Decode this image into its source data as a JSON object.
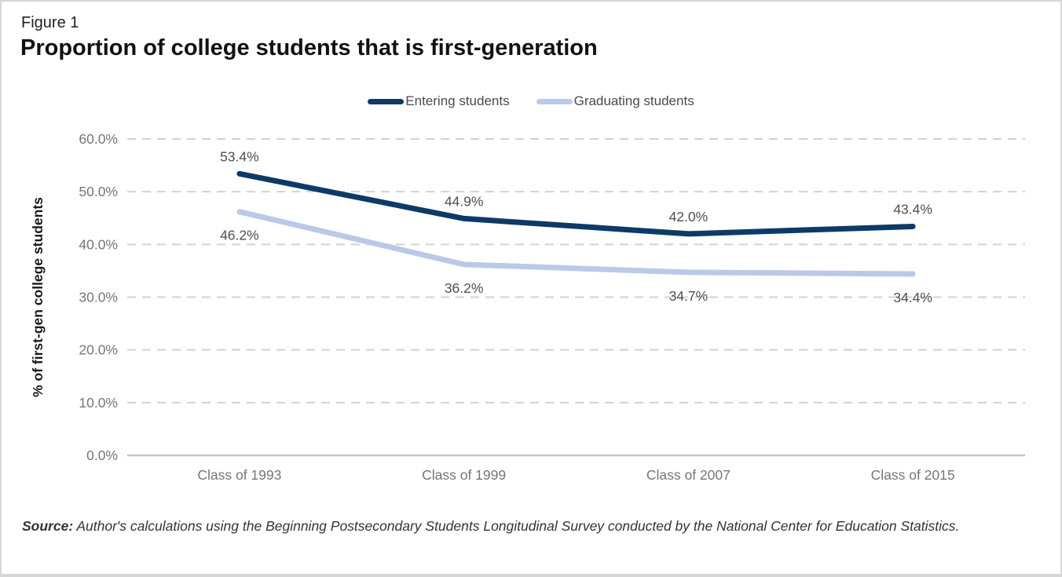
{
  "figure_label": "Figure 1",
  "title": "Proportion of college students that is first-generation",
  "source": {
    "prefix": "Source:",
    "text": " Author's calculations using the Beginning Postsecondary Students Longitudinal Survey conducted by the National Center for Education Statistics."
  },
  "colors": {
    "gridline": "#d2d2d2",
    "axis_line": "#c6c6c6",
    "tick_label": "#757575",
    "x_label": "#757575",
    "data_label": "#4f4f4f",
    "y_axis_title": "#1a1a1a"
  },
  "chart_data": {
    "type": "line",
    "title": "Proportion of college students that is first-generation",
    "categories": [
      "Class of 1993",
      "Class of 1999",
      "Class of 2007",
      "Class of 2015"
    ],
    "series": [
      {
        "name": "Entering students",
        "values": [
          53.4,
          44.9,
          42.0,
          43.4
        ],
        "color": "#0d3a67",
        "label_position": "above"
      },
      {
        "name": "Graduating students",
        "values": [
          46.2,
          36.2,
          34.7,
          34.4
        ],
        "color": "#bac9e9",
        "label_position": "below"
      }
    ],
    "xlabel": "",
    "ylabel": "% of first-gen college students",
    "ylim": [
      0,
      60
    ],
    "ytick_step": 10,
    "ytick_labels": [
      "0.0%",
      "10.0%",
      "20.0%",
      "30.0%",
      "40.0%",
      "50.0%",
      "60.0%"
    ],
    "value_label_format": "one_decimal_percent",
    "grid": "horizontal-dashed",
    "legend_position": "top-center"
  }
}
